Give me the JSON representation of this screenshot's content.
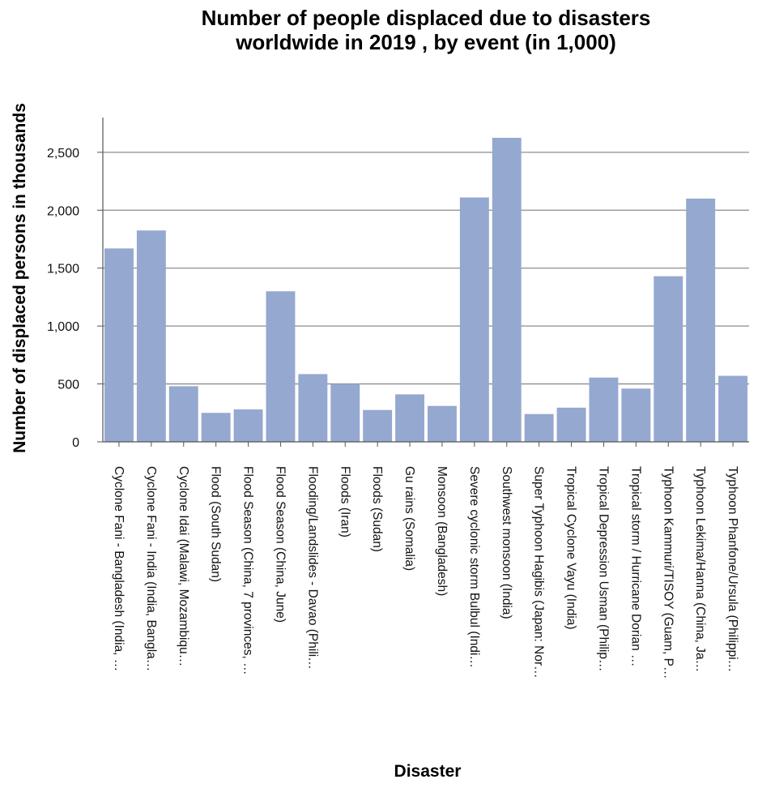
{
  "chart_data": {
    "type": "bar",
    "title_lines": [
      "Number of people displaced due to disasters",
      "worldwide in 2019 , by event (in 1,000)"
    ],
    "xlabel": "Disaster",
    "ylabel": "Number of displaced persons in thousands",
    "ylim": [
      0,
      2800
    ],
    "yticks": [
      0,
      500,
      1000,
      1500,
      2000,
      2500
    ],
    "ytick_labels": [
      "0",
      "500",
      "1,000",
      "1,500",
      "2,000",
      "2,500"
    ],
    "grid": "horizontal",
    "bar_color": "#94a8d0",
    "categories": [
      "Cyclone Fani - Bangladesh (India, …",
      "Cyclone Fani - India (India, Bangla…",
      "Cyclone Idai (Malawi, Mozambiqu…",
      "Flood (South Sudan)",
      "Flood Season (China, 7 provinces, …",
      "Flood Season (China, June)",
      "Flooding/Landslides - Davao (Phili…",
      "Floods (Iran)",
      "Floods (Sudan)",
      "Gu rains (Somalia)",
      "Monsoon (Bangladesh)",
      "Severe cyclonic storm Bulbul (Indi…",
      "Southwest monsoon (India)",
      "Super Typhoon Hagibis (Japan: Nor…",
      "Tropical Cyclone Vayu (India)",
      "Tropical Depression Usman (Philip…",
      "Tropical storm / Hurricane Dorian …",
      "Typhoon Kammuri/TISOY (Guam, P…",
      "Typhoon Lekima/Hanna (China, Ja…",
      "Typhoon Phanfone/Ursula (Philippi…"
    ],
    "values": [
      1670,
      1825,
      480,
      250,
      280,
      1300,
      585,
      500,
      275,
      410,
      310,
      2110,
      2625,
      240,
      295,
      555,
      460,
      1430,
      2100,
      570
    ]
  }
}
